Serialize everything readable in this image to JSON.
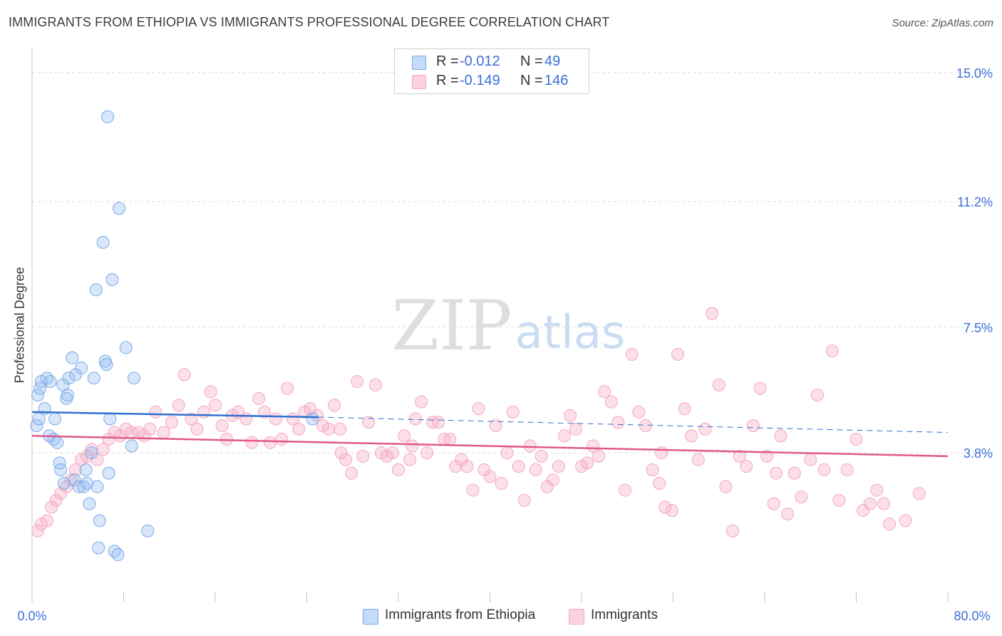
{
  "title": "IMMIGRANTS FROM ETHIOPIA VS IMMIGRANTS PROFESSIONAL DEGREE CORRELATION CHART",
  "source": "Source: ZipAtlas.com",
  "watermark": {
    "zip": "ZIP",
    "atlas": "atlas"
  },
  "legend": {
    "rows": [
      {
        "r_label": "R =",
        "r_value": "-0.012",
        "n_label": "N =",
        "n_value": "49",
        "color": "#8fb8f0"
      },
      {
        "r_label": "R =",
        "r_value": "-0.149",
        "n_label": "N =",
        "n_value": "146",
        "color": "#f5a7c0"
      }
    ]
  },
  "bottom_legend": [
    {
      "label": "Immigrants from Ethiopia",
      "color": "#8fb8f0"
    },
    {
      "label": "Immigrants",
      "color": "#f5a7c0"
    }
  ],
  "chart_data": {
    "type": "scatter",
    "title": "IMMIGRANTS FROM ETHIOPIA VS IMMIGRANTS PROFESSIONAL DEGREE CORRELATION CHART",
    "xlabel": "",
    "ylabel": "Professional Degree",
    "xlim": [
      0,
      80
    ],
    "ylim": [
      0,
      15.5
    ],
    "x_tick_labels": [
      "0.0%",
      "80.0%"
    ],
    "y_ticks": [
      3.8,
      7.5,
      11.2,
      15.0
    ],
    "y_tick_labels": [
      "3.8%",
      "7.5%",
      "11.2%",
      "15.0%"
    ],
    "grid": true,
    "legend_position": "top-center",
    "series": [
      {
        "name": "Immigrants from Ethiopia",
        "color": "#7aaae8",
        "line_color": "#2f6fd0",
        "trend": {
          "x": [
            0,
            25
          ],
          "y": [
            5.0,
            4.85
          ],
          "dashed_to": [
            80,
            4.4
          ]
        },
        "points": [
          [
            0.4,
            4.6
          ],
          [
            0.5,
            5.5
          ],
          [
            0.6,
            4.8
          ],
          [
            0.7,
            5.7
          ],
          [
            0.8,
            5.9
          ],
          [
            1.1,
            5.1
          ],
          [
            1.3,
            6.0
          ],
          [
            1.5,
            4.3
          ],
          [
            1.6,
            5.9
          ],
          [
            1.9,
            4.2
          ],
          [
            2.0,
            4.8
          ],
          [
            2.2,
            4.1
          ],
          [
            2.4,
            3.5
          ],
          [
            2.5,
            3.3
          ],
          [
            2.7,
            5.8
          ],
          [
            2.8,
            2.9
          ],
          [
            3.0,
            5.4
          ],
          [
            3.1,
            5.5
          ],
          [
            3.2,
            6.0
          ],
          [
            3.5,
            6.6
          ],
          [
            3.7,
            3.0
          ],
          [
            3.8,
            6.1
          ],
          [
            4.1,
            2.8
          ],
          [
            4.3,
            6.3
          ],
          [
            4.5,
            2.8
          ],
          [
            4.7,
            3.3
          ],
          [
            4.8,
            2.9
          ],
          [
            5.0,
            2.3
          ],
          [
            5.2,
            3.8
          ],
          [
            5.4,
            6.0
          ],
          [
            5.6,
            8.6
          ],
          [
            5.7,
            2.8
          ],
          [
            5.9,
            1.8
          ],
          [
            6.2,
            10.0
          ],
          [
            6.4,
            6.5
          ],
          [
            6.5,
            6.4
          ],
          [
            6.6,
            13.7
          ],
          [
            6.7,
            3.2
          ],
          [
            6.8,
            4.8
          ],
          [
            7.0,
            8.9
          ],
          [
            7.2,
            0.9
          ],
          [
            7.5,
            0.8
          ],
          [
            7.6,
            11.0
          ],
          [
            8.2,
            6.9
          ],
          [
            8.7,
            4.0
          ],
          [
            8.9,
            6.0
          ],
          [
            10.1,
            1.5
          ],
          [
            5.8,
            1.0
          ],
          [
            24.5,
            4.8
          ]
        ]
      },
      {
        "name": "Immigrants",
        "color": "#f5a7c0",
        "line_color": "#e0588a",
        "trend": {
          "x": [
            0,
            80
          ],
          "y": [
            4.3,
            3.7
          ]
        },
        "points": [
          [
            0.5,
            1.5
          ],
          [
            0.8,
            1.7
          ],
          [
            1.3,
            1.8
          ],
          [
            1.7,
            2.2
          ],
          [
            2.1,
            2.4
          ],
          [
            2.5,
            2.6
          ],
          [
            3.0,
            2.8
          ],
          [
            3.4,
            3.0
          ],
          [
            3.8,
            3.3
          ],
          [
            4.3,
            3.6
          ],
          [
            4.8,
            3.7
          ],
          [
            5.2,
            3.9
          ],
          [
            5.7,
            3.6
          ],
          [
            6.2,
            3.9
          ],
          [
            6.7,
            4.2
          ],
          [
            7.2,
            4.4
          ],
          [
            7.7,
            4.3
          ],
          [
            8.2,
            4.5
          ],
          [
            8.7,
            4.4
          ],
          [
            9.3,
            4.4
          ],
          [
            9.8,
            4.3
          ],
          [
            10.3,
            4.5
          ],
          [
            10.8,
            5.0
          ],
          [
            11.5,
            4.4
          ],
          [
            12.2,
            4.7
          ],
          [
            12.8,
            5.2
          ],
          [
            13.3,
            6.1
          ],
          [
            13.9,
            4.8
          ],
          [
            14.4,
            4.5
          ],
          [
            15.0,
            5.0
          ],
          [
            15.6,
            5.6
          ],
          [
            16.0,
            5.2
          ],
          [
            16.6,
            4.6
          ],
          [
            17.0,
            4.2
          ],
          [
            17.5,
            4.9
          ],
          [
            18.0,
            5.0
          ],
          [
            18.7,
            4.8
          ],
          [
            19.2,
            4.1
          ],
          [
            19.8,
            5.4
          ],
          [
            20.3,
            5.0
          ],
          [
            20.8,
            4.1
          ],
          [
            21.3,
            4.8
          ],
          [
            21.8,
            4.2
          ],
          [
            22.3,
            5.7
          ],
          [
            22.8,
            4.8
          ],
          [
            23.3,
            4.5
          ],
          [
            23.8,
            5.0
          ],
          [
            24.3,
            5.1
          ],
          [
            24.9,
            4.9
          ],
          [
            25.4,
            4.6
          ],
          [
            25.9,
            4.5
          ],
          [
            26.4,
            5.2
          ],
          [
            26.9,
            4.5
          ],
          [
            27.4,
            3.6
          ],
          [
            27.9,
            3.2
          ],
          [
            28.4,
            5.9
          ],
          [
            28.9,
            3.7
          ],
          [
            29.4,
            4.7
          ],
          [
            30.0,
            5.8
          ],
          [
            30.5,
            3.8
          ],
          [
            31.0,
            3.7
          ],
          [
            31.5,
            3.8
          ],
          [
            32.0,
            3.3
          ],
          [
            32.5,
            4.3
          ],
          [
            33.0,
            3.6
          ],
          [
            33.5,
            4.8
          ],
          [
            34.0,
            5.3
          ],
          [
            34.5,
            3.8
          ],
          [
            35.0,
            4.7
          ],
          [
            35.5,
            4.7
          ],
          [
            36.0,
            4.2
          ],
          [
            36.5,
            4.2
          ],
          [
            37.0,
            3.4
          ],
          [
            37.5,
            3.6
          ],
          [
            38.0,
            3.4
          ],
          [
            38.5,
            2.7
          ],
          [
            39.0,
            5.1
          ],
          [
            39.5,
            3.3
          ],
          [
            40.0,
            3.1
          ],
          [
            40.5,
            4.6
          ],
          [
            41.0,
            2.9
          ],
          [
            41.5,
            3.8
          ],
          [
            42.0,
            5.0
          ],
          [
            42.5,
            3.4
          ],
          [
            43.0,
            2.4
          ],
          [
            43.5,
            4.0
          ],
          [
            44.0,
            3.3
          ],
          [
            44.5,
            3.7
          ],
          [
            45.0,
            2.8
          ],
          [
            45.5,
            3.0
          ],
          [
            46.0,
            3.4
          ],
          [
            46.5,
            4.3
          ],
          [
            47.0,
            4.9
          ],
          [
            47.5,
            4.5
          ],
          [
            48.0,
            3.4
          ],
          [
            48.5,
            3.5
          ],
          [
            49.0,
            4.0
          ],
          [
            49.5,
            3.7
          ],
          [
            50.0,
            5.6
          ],
          [
            50.6,
            5.3
          ],
          [
            51.2,
            4.7
          ],
          [
            51.8,
            2.7
          ],
          [
            52.4,
            6.7
          ],
          [
            53.0,
            5.0
          ],
          [
            53.6,
            4.6
          ],
          [
            54.2,
            3.3
          ],
          [
            54.8,
            2.9
          ],
          [
            55.3,
            2.2
          ],
          [
            55.9,
            2.1
          ],
          [
            56.4,
            6.7
          ],
          [
            57.0,
            5.1
          ],
          [
            57.6,
            4.3
          ],
          [
            58.2,
            3.6
          ],
          [
            58.8,
            4.5
          ],
          [
            59.4,
            7.9
          ],
          [
            60.0,
            5.8
          ],
          [
            60.6,
            2.8
          ],
          [
            61.2,
            1.5
          ],
          [
            61.8,
            3.7
          ],
          [
            62.4,
            3.4
          ],
          [
            63.0,
            4.6
          ],
          [
            63.6,
            5.7
          ],
          [
            64.2,
            3.7
          ],
          [
            64.8,
            2.3
          ],
          [
            65.4,
            4.3
          ],
          [
            66.0,
            2.0
          ],
          [
            66.6,
            3.2
          ],
          [
            67.2,
            2.5
          ],
          [
            68.0,
            3.6
          ],
          [
            68.6,
            5.5
          ],
          [
            69.2,
            3.3
          ],
          [
            69.9,
            6.8
          ],
          [
            70.5,
            2.4
          ],
          [
            71.2,
            3.3
          ],
          [
            72.0,
            4.2
          ],
          [
            72.6,
            2.1
          ],
          [
            73.2,
            2.3
          ],
          [
            73.8,
            2.7
          ],
          [
            74.4,
            2.3
          ],
          [
            74.9,
            1.7
          ],
          [
            76.3,
            1.8
          ],
          [
            77.5,
            2.6
          ],
          [
            65.0,
            3.2
          ],
          [
            55.0,
            3.8
          ],
          [
            33.2,
            4.0
          ],
          [
            27.0,
            3.8
          ]
        ]
      }
    ]
  }
}
